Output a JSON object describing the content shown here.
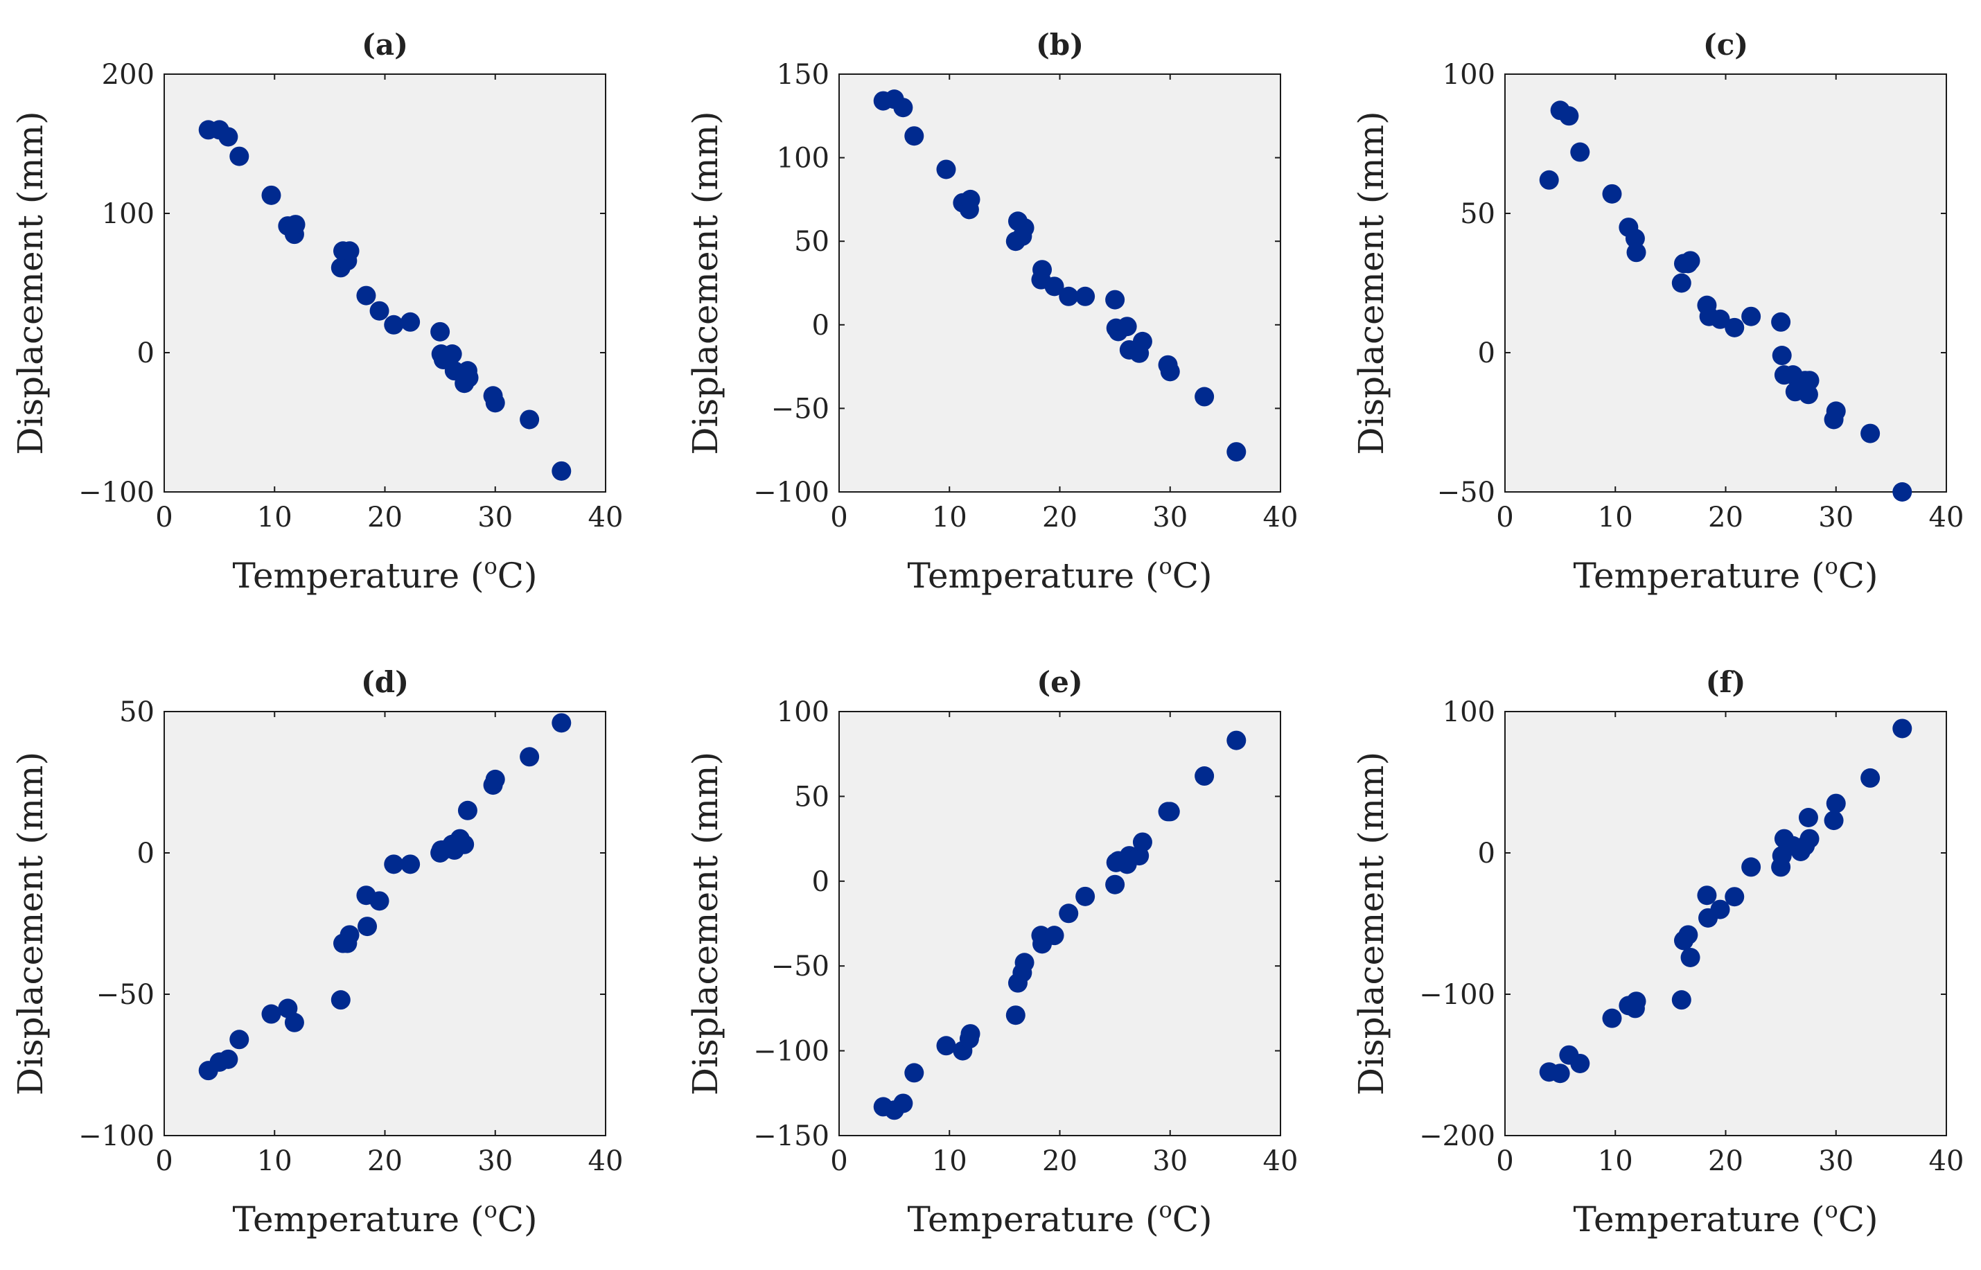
{
  "figure": {
    "background": "#ffffff",
    "panel_background": "#f0f0f0",
    "marker_color": "#002a8f"
  },
  "chart_data": [
    {
      "type": "scatter",
      "title": "(a)",
      "xlabel": "Temperature (",
      "xlabel_sup": "o",
      "xlabel_tail": "C)",
      "ylabel": "Displacement (mm)",
      "xlim": [
        0,
        40
      ],
      "ylim": [
        -100,
        200
      ],
      "xticks": [
        0,
        10,
        20,
        30,
        40
      ],
      "yticks": [
        -100,
        0,
        100,
        200
      ],
      "grid": false,
      "points": [
        [
          4,
          160
        ],
        [
          5,
          160
        ],
        [
          5.8,
          155
        ],
        [
          6.8,
          141
        ],
        [
          9.7,
          113
        ],
        [
          11.2,
          91
        ],
        [
          11.8,
          85
        ],
        [
          11.9,
          92
        ],
        [
          16,
          61
        ],
        [
          16.2,
          73
        ],
        [
          16.6,
          66
        ],
        [
          16.8,
          73
        ],
        [
          18.3,
          41
        ],
        [
          19.5,
          30
        ],
        [
          20.8,
          20
        ],
        [
          22.3,
          22
        ],
        [
          25,
          15
        ],
        [
          25.1,
          -1
        ],
        [
          25.3,
          -5
        ],
        [
          26.1,
          -1
        ],
        [
          26.3,
          -13
        ],
        [
          27.2,
          -22
        ],
        [
          27.5,
          -13
        ],
        [
          27.6,
          -18
        ],
        [
          29.8,
          -31
        ],
        [
          30,
          -36
        ],
        [
          33.1,
          -48
        ],
        [
          36,
          -85
        ]
      ]
    },
    {
      "type": "scatter",
      "title": "(b)",
      "xlabel": "Temperature (",
      "xlabel_sup": "o",
      "xlabel_tail": "C)",
      "ylabel": "Displacement (mm)",
      "xlim": [
        0,
        40
      ],
      "ylim": [
        -100,
        150
      ],
      "xticks": [
        0,
        10,
        20,
        30,
        40
      ],
      "yticks": [
        -100,
        -50,
        0,
        50,
        100,
        150
      ],
      "grid": false,
      "points": [
        [
          4,
          134
        ],
        [
          5,
          135
        ],
        [
          5.8,
          130
        ],
        [
          6.8,
          113
        ],
        [
          9.7,
          93
        ],
        [
          11.2,
          73
        ],
        [
          11.8,
          69
        ],
        [
          11.9,
          75
        ],
        [
          16,
          50
        ],
        [
          16.2,
          62
        ],
        [
          16.6,
          53
        ],
        [
          16.8,
          58
        ],
        [
          18.3,
          27
        ],
        [
          18.4,
          33
        ],
        [
          19.5,
          23
        ],
        [
          20.8,
          17
        ],
        [
          22.3,
          17
        ],
        [
          25,
          15
        ],
        [
          25.1,
          -2
        ],
        [
          25.3,
          -4
        ],
        [
          26.1,
          -1
        ],
        [
          26.3,
          -15
        ],
        [
          27.2,
          -17
        ],
        [
          27.5,
          -10
        ],
        [
          29.8,
          -24
        ],
        [
          30,
          -28
        ],
        [
          33.1,
          -43
        ],
        [
          36,
          -76
        ]
      ]
    },
    {
      "type": "scatter",
      "title": "(c)",
      "xlabel": "Temperature (",
      "xlabel_sup": "o",
      "xlabel_tail": "C)",
      "ylabel": "Displacement (mm)",
      "xlim": [
        0,
        40
      ],
      "ylim": [
        -50,
        100
      ],
      "xticks": [
        0,
        10,
        20,
        30,
        40
      ],
      "yticks": [
        -50,
        0,
        50,
        100
      ],
      "grid": false,
      "points": [
        [
          4,
          62
        ],
        [
          5,
          87
        ],
        [
          5.8,
          85
        ],
        [
          6.8,
          72
        ],
        [
          9.7,
          57
        ],
        [
          11.2,
          45
        ],
        [
          11.8,
          41
        ],
        [
          11.9,
          36
        ],
        [
          16,
          25
        ],
        [
          16.2,
          32
        ],
        [
          16.6,
          32
        ],
        [
          16.8,
          33
        ],
        [
          18.3,
          17
        ],
        [
          18.5,
          13
        ],
        [
          19.5,
          12
        ],
        [
          20.8,
          9
        ],
        [
          22.3,
          13
        ],
        [
          25,
          11
        ],
        [
          25.1,
          -1
        ],
        [
          25.3,
          -8
        ],
        [
          26.1,
          -8
        ],
        [
          26.3,
          -14
        ],
        [
          26.8,
          -12
        ],
        [
          27.2,
          -10
        ],
        [
          27.5,
          -15
        ],
        [
          27.6,
          -10
        ],
        [
          29.8,
          -24
        ],
        [
          30,
          -21
        ],
        [
          33.1,
          -29
        ],
        [
          36,
          -50
        ]
      ]
    },
    {
      "type": "scatter",
      "title": "(d)",
      "xlabel": "Temperature (",
      "xlabel_sup": "o",
      "xlabel_tail": "C)",
      "ylabel": "Displacement (mm)",
      "xlim": [
        0,
        40
      ],
      "ylim": [
        -100,
        50
      ],
      "xticks": [
        0,
        10,
        20,
        30,
        40
      ],
      "yticks": [
        -100,
        -50,
        0,
        50
      ],
      "grid": false,
      "points": [
        [
          4,
          -77
        ],
        [
          5,
          -74
        ],
        [
          5.8,
          -73
        ],
        [
          6.8,
          -66
        ],
        [
          9.7,
          -57
        ],
        [
          11.2,
          -55
        ],
        [
          11.8,
          -60
        ],
        [
          16,
          -52
        ],
        [
          16.2,
          -32
        ],
        [
          16.6,
          -32
        ],
        [
          16.8,
          -29
        ],
        [
          18.3,
          -15
        ],
        [
          18.4,
          -26
        ],
        [
          19.5,
          -17
        ],
        [
          20.8,
          -4
        ],
        [
          22.3,
          -4
        ],
        [
          25,
          0
        ],
        [
          25.1,
          1
        ],
        [
          25.3,
          1
        ],
        [
          26.1,
          3
        ],
        [
          26.3,
          1
        ],
        [
          26.8,
          5
        ],
        [
          27.2,
          3
        ],
        [
          27.5,
          15
        ],
        [
          29.8,
          24
        ],
        [
          30,
          26
        ],
        [
          33.1,
          34
        ],
        [
          36,
          46
        ]
      ]
    },
    {
      "type": "scatter",
      "title": "(e)",
      "xlabel": "Temperature (",
      "xlabel_sup": "o",
      "xlabel_tail": "C)",
      "ylabel": "Displacement (mm)",
      "xlim": [
        0,
        40
      ],
      "ylim": [
        -150,
        100
      ],
      "xticks": [
        0,
        10,
        20,
        30,
        40
      ],
      "yticks": [
        -150,
        -100,
        -50,
        0,
        50,
        100
      ],
      "grid": false,
      "points": [
        [
          4,
          -133
        ],
        [
          5,
          -135
        ],
        [
          5.8,
          -131
        ],
        [
          6.8,
          -113
        ],
        [
          9.7,
          -97
        ],
        [
          11.2,
          -100
        ],
        [
          11.8,
          -93
        ],
        [
          11.9,
          -90
        ],
        [
          16,
          -79
        ],
        [
          16.2,
          -60
        ],
        [
          16.6,
          -54
        ],
        [
          16.8,
          -48
        ],
        [
          18.3,
          -32
        ],
        [
          18.4,
          -37
        ],
        [
          19.5,
          -32
        ],
        [
          20.8,
          -19
        ],
        [
          22.3,
          -9
        ],
        [
          25,
          -2
        ],
        [
          25.1,
          11
        ],
        [
          25.3,
          12
        ],
        [
          26.1,
          10
        ],
        [
          26.3,
          15
        ],
        [
          27.2,
          15
        ],
        [
          27.5,
          23
        ],
        [
          29.8,
          41
        ],
        [
          30,
          41
        ],
        [
          33.1,
          62
        ],
        [
          36,
          83
        ]
      ]
    },
    {
      "type": "scatter",
      "title": "(f)",
      "xlabel": "Temperature (",
      "xlabel_sup": "o",
      "xlabel_tail": "C)",
      "ylabel": "Displacement (mm)",
      "xlim": [
        0,
        40
      ],
      "ylim": [
        -200,
        100
      ],
      "xticks": [
        0,
        10,
        20,
        30,
        40
      ],
      "yticks": [
        -200,
        -100,
        0,
        100
      ],
      "grid": false,
      "points": [
        [
          4,
          -155
        ],
        [
          5,
          -156
        ],
        [
          5.8,
          -143
        ],
        [
          6.8,
          -149
        ],
        [
          9.7,
          -117
        ],
        [
          11.2,
          -108
        ],
        [
          11.8,
          -110
        ],
        [
          11.9,
          -105
        ],
        [
          16,
          -104
        ],
        [
          16.2,
          -62
        ],
        [
          16.6,
          -58
        ],
        [
          16.8,
          -74
        ],
        [
          18.3,
          -30
        ],
        [
          18.4,
          -46
        ],
        [
          19.5,
          -40
        ],
        [
          20.8,
          -31
        ],
        [
          22.3,
          -10
        ],
        [
          25,
          -10
        ],
        [
          25.1,
          -2
        ],
        [
          25.3,
          10
        ],
        [
          26.1,
          5
        ],
        [
          26.8,
          1
        ],
        [
          27.2,
          5
        ],
        [
          27.5,
          25
        ],
        [
          27.6,
          10
        ],
        [
          29.8,
          23
        ],
        [
          30,
          35
        ],
        [
          33.1,
          53
        ],
        [
          36,
          88
        ]
      ]
    }
  ]
}
